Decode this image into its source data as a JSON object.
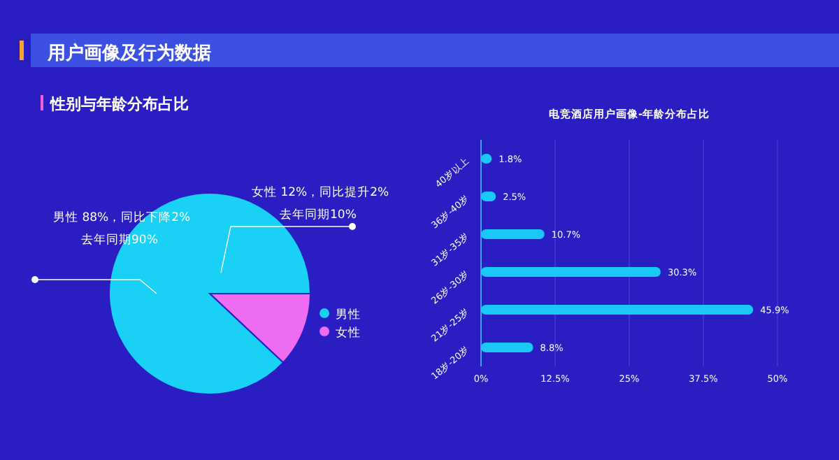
{
  "chart_data": [
    {
      "type": "pie",
      "title": "用户画像及行为数据",
      "subtitle": "性别与年龄分布占比",
      "categories": [
        "男性",
        "女性"
      ],
      "values": [
        88,
        12
      ],
      "colors": [
        "#19d0f5",
        "#ee6cf0"
      ],
      "legend": "bottom right",
      "annotations": [
        "男性 88%，同比下降2%",
        "去年同期90%",
        "女性 12%，同比提升2%",
        "去年同期10%"
      ]
    },
    {
      "type": "bar",
      "orientation": "horizontal",
      "title": "电竞酒店用户画像-年龄分布占比",
      "categories": [
        "40岁以上",
        "36岁-40岁",
        "31岁-35岁",
        "26岁-30岁",
        "21岁-25岁",
        "18岁-20岁"
      ],
      "values": [
        1.8,
        2.5,
        10.7,
        30.3,
        45.9,
        8.8
      ],
      "value_labels": [
        "1.8%",
        "2.5%",
        "10.7%",
        "30.3%",
        "45.9%",
        "8.8%"
      ],
      "color": "#19c8f5",
      "xlim": [
        0,
        50
      ],
      "xticks": [
        {
          "value": 0,
          "label": "0%"
        },
        {
          "value": 12.5,
          "label": "12.5%"
        },
        {
          "value": 25,
          "label": "25%"
        },
        {
          "value": 37.5,
          "label": "37.5%"
        },
        {
          "value": 50,
          "label": "50%"
        }
      ],
      "grid": "x"
    }
  ]
}
